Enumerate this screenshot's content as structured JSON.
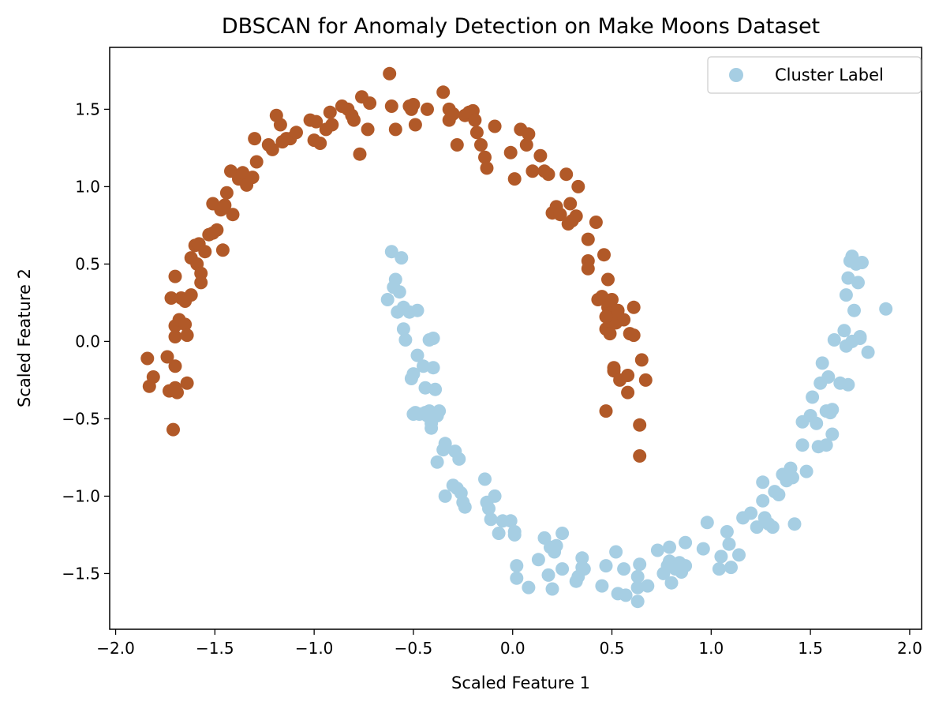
{
  "chart_data": {
    "type": "scatter",
    "title": "DBSCAN for Anomaly Detection on Make Moons Dataset",
    "xlabel": "Scaled Feature 1",
    "ylabel": "Scaled Feature 2",
    "xlim": [
      -2.03,
      2.06
    ],
    "ylim": [
      -1.86,
      1.9
    ],
    "xticks": [
      -2.0,
      -1.5,
      -1.0,
      -0.5,
      0.0,
      0.5,
      1.0,
      1.5,
      2.0
    ],
    "xtick_labels": [
      "−2.0",
      "−1.5",
      "−1.0",
      "−0.5",
      "0.0",
      "0.5",
      "1.0",
      "1.5",
      "2.0"
    ],
    "yticks": [
      -1.5,
      -1.0,
      -0.5,
      0.0,
      0.5,
      1.0,
      1.5
    ],
    "ytick_labels": [
      "−1.5",
      "−1.0",
      "−0.5",
      "0.0",
      "0.5",
      "1.0",
      "1.5"
    ],
    "grid": false,
    "legend": {
      "placement": "top-right",
      "entries": [
        "Cluster Label"
      ]
    },
    "series": [
      {
        "cluster": 1,
        "color": "#b15928",
        "points": [
          [
            -1.84,
            -0.11
          ],
          [
            -1.83,
            -0.29
          ],
          [
            -1.81,
            -0.23
          ],
          [
            -1.74,
            -0.1
          ],
          [
            -1.73,
            -0.32
          ],
          [
            -1.72,
            0.28
          ],
          [
            -1.71,
            -0.57
          ],
          [
            -1.7,
            0.42
          ],
          [
            -1.7,
            0.1
          ],
          [
            -1.7,
            0.03
          ],
          [
            -1.7,
            -0.16
          ],
          [
            -1.7,
            -0.3
          ],
          [
            -1.69,
            -0.33
          ],
          [
            -1.68,
            0.14
          ],
          [
            -1.67,
            0.28
          ],
          [
            -1.65,
            0.11
          ],
          [
            -1.65,
            0.26
          ],
          [
            -1.64,
            0.04
          ],
          [
            -1.64,
            -0.27
          ],
          [
            -1.62,
            0.3
          ],
          [
            -1.62,
            0.54
          ],
          [
            -1.6,
            0.62
          ],
          [
            -1.59,
            0.5
          ],
          [
            -1.58,
            0.63
          ],
          [
            -1.57,
            0.44
          ],
          [
            -1.57,
            0.38
          ],
          [
            -1.55,
            0.58
          ],
          [
            -1.53,
            0.69
          ],
          [
            -1.51,
            0.89
          ],
          [
            -1.51,
            0.7
          ],
          [
            -1.49,
            0.72
          ],
          [
            -1.47,
            0.85
          ],
          [
            -1.46,
            0.59
          ],
          [
            -1.45,
            0.88
          ],
          [
            -1.44,
            0.96
          ],
          [
            -1.42,
            1.1
          ],
          [
            -1.41,
            0.82
          ],
          [
            -1.38,
            1.05
          ],
          [
            -1.36,
            1.09
          ],
          [
            -1.34,
            1.01
          ],
          [
            -1.31,
            1.06
          ],
          [
            -1.3,
            1.31
          ],
          [
            -1.29,
            1.16
          ],
          [
            -1.23,
            1.27
          ],
          [
            -1.21,
            1.24
          ],
          [
            -1.19,
            1.46
          ],
          [
            -1.17,
            1.4
          ],
          [
            -1.16,
            1.29
          ],
          [
            -1.14,
            1.31
          ],
          [
            -1.12,
            1.31
          ],
          [
            -1.09,
            1.35
          ],
          [
            -1.02,
            1.43
          ],
          [
            -1.0,
            1.3
          ],
          [
            -0.99,
            1.42
          ],
          [
            -0.97,
            1.28
          ],
          [
            -0.94,
            1.37
          ],
          [
            -0.92,
            1.48
          ],
          [
            -0.91,
            1.4
          ],
          [
            -0.86,
            1.52
          ],
          [
            -0.83,
            1.5
          ],
          [
            -0.81,
            1.46
          ],
          [
            -0.8,
            1.43
          ],
          [
            -0.77,
            1.21
          ],
          [
            -0.76,
            1.58
          ],
          [
            -0.73,
            1.37
          ],
          [
            -0.72,
            1.54
          ],
          [
            -0.62,
            1.73
          ],
          [
            -0.61,
            1.52
          ],
          [
            -0.59,
            1.37
          ],
          [
            -0.52,
            1.52
          ],
          [
            -0.51,
            1.5
          ],
          [
            -0.5,
            1.53
          ],
          [
            -0.49,
            1.4
          ],
          [
            -0.43,
            1.5
          ],
          [
            -0.35,
            1.61
          ],
          [
            -0.32,
            1.5
          ],
          [
            -0.32,
            1.43
          ],
          [
            -0.3,
            1.47
          ],
          [
            -0.28,
            1.27
          ],
          [
            -0.24,
            1.46
          ],
          [
            -0.22,
            1.48
          ],
          [
            -0.2,
            1.49
          ],
          [
            -0.19,
            1.43
          ],
          [
            -0.18,
            1.35
          ],
          [
            -0.16,
            1.27
          ],
          [
            -0.14,
            1.19
          ],
          [
            -0.13,
            1.12
          ],
          [
            -0.09,
            1.39
          ],
          [
            -0.01,
            1.22
          ],
          [
            0.01,
            1.05
          ],
          [
            0.04,
            1.37
          ],
          [
            0.07,
            1.27
          ],
          [
            0.08,
            1.34
          ],
          [
            0.1,
            1.1
          ],
          [
            0.14,
            1.2
          ],
          [
            0.16,
            1.1
          ],
          [
            0.18,
            1.08
          ],
          [
            0.2,
            0.83
          ],
          [
            0.22,
            0.87
          ],
          [
            0.24,
            0.82
          ],
          [
            0.27,
            1.08
          ],
          [
            0.28,
            0.76
          ],
          [
            0.29,
            0.89
          ],
          [
            0.3,
            0.78
          ],
          [
            0.32,
            0.81
          ],
          [
            0.33,
            1.0
          ],
          [
            0.38,
            0.66
          ],
          [
            0.38,
            0.52
          ],
          [
            0.38,
            0.47
          ],
          [
            0.42,
            0.77
          ],
          [
            0.43,
            0.27
          ],
          [
            0.45,
            0.29
          ],
          [
            0.46,
            0.56
          ],
          [
            0.47,
            0.08
          ],
          [
            0.48,
            0.4
          ],
          [
            0.48,
            0.22
          ],
          [
            0.49,
            0.13
          ],
          [
            0.49,
            0.18
          ],
          [
            0.5,
            0.15
          ],
          [
            0.5,
            0.27
          ],
          [
            0.51,
            -0.19
          ],
          [
            0.51,
            -0.17
          ],
          [
            0.52,
            0.12
          ],
          [
            0.53,
            0.2
          ],
          [
            0.54,
            -0.25
          ],
          [
            0.56,
            0.14
          ],
          [
            0.58,
            -0.33
          ],
          [
            0.58,
            -0.22
          ],
          [
            0.59,
            0.05
          ],
          [
            0.61,
            0.04
          ],
          [
            0.61,
            0.22
          ],
          [
            0.64,
            -0.54
          ],
          [
            0.64,
            -0.74
          ],
          [
            0.65,
            -0.12
          ],
          [
            0.67,
            -0.25
          ],
          [
            0.47,
            -0.45
          ],
          [
            0.47,
            0.16
          ],
          [
            0.49,
            0.05
          ]
        ]
      },
      {
        "cluster": 0,
        "color": "#a6cee3",
        "points": [
          [
            -0.63,
            0.27
          ],
          [
            -0.61,
            0.58
          ],
          [
            -0.6,
            0.35
          ],
          [
            -0.59,
            0.4
          ],
          [
            -0.58,
            0.19
          ],
          [
            -0.57,
            0.32
          ],
          [
            -0.56,
            0.54
          ],
          [
            -0.55,
            0.22
          ],
          [
            -0.55,
            0.08
          ],
          [
            -0.54,
            0.01
          ],
          [
            -0.52,
            0.19
          ],
          [
            -0.51,
            -0.24
          ],
          [
            -0.5,
            -0.21
          ],
          [
            -0.49,
            -0.46
          ],
          [
            -0.48,
            0.2
          ],
          [
            -0.48,
            -0.09
          ],
          [
            -0.47,
            -0.47
          ],
          [
            -0.45,
            -0.16
          ],
          [
            -0.44,
            -0.3
          ],
          [
            -0.44,
            -0.46
          ],
          [
            -0.42,
            0.01
          ],
          [
            -0.42,
            -0.45
          ],
          [
            -0.41,
            -0.53
          ],
          [
            -0.41,
            -0.56
          ],
          [
            -0.4,
            0.02
          ],
          [
            -0.4,
            -0.17
          ],
          [
            -0.39,
            -0.31
          ],
          [
            -0.38,
            -0.48
          ],
          [
            -0.38,
            -0.78
          ],
          [
            -0.37,
            -0.45
          ],
          [
            -0.35,
            -0.7
          ],
          [
            -0.34,
            -0.66
          ],
          [
            -0.34,
            -1.0
          ],
          [
            -0.3,
            -0.93
          ],
          [
            -0.29,
            -0.71
          ],
          [
            -0.28,
            -0.95
          ],
          [
            -0.27,
            -0.76
          ],
          [
            -0.26,
            -0.98
          ],
          [
            -0.25,
            -1.04
          ],
          [
            -0.24,
            -1.07
          ],
          [
            -0.14,
            -0.89
          ],
          [
            -0.13,
            -1.04
          ],
          [
            -0.12,
            -1.08
          ],
          [
            -0.11,
            -1.15
          ],
          [
            -0.09,
            -1.0
          ],
          [
            -0.07,
            -1.24
          ],
          [
            -0.05,
            -1.16
          ],
          [
            -0.01,
            -1.16
          ],
          [
            0.01,
            -1.23
          ],
          [
            0.01,
            -1.25
          ],
          [
            0.02,
            -1.53
          ],
          [
            0.02,
            -1.45
          ],
          [
            0.08,
            -1.59
          ],
          [
            0.13,
            -1.41
          ],
          [
            0.16,
            -1.27
          ],
          [
            0.18,
            -1.51
          ],
          [
            0.19,
            -1.33
          ],
          [
            0.2,
            -1.6
          ],
          [
            0.21,
            -1.36
          ],
          [
            0.22,
            -1.32
          ],
          [
            0.25,
            -1.24
          ],
          [
            0.25,
            -1.47
          ],
          [
            0.32,
            -1.55
          ],
          [
            0.33,
            -1.52
          ],
          [
            0.35,
            -1.4
          ],
          [
            0.35,
            -1.46
          ],
          [
            0.45,
            -1.58
          ],
          [
            0.47,
            -1.45
          ],
          [
            0.52,
            -1.36
          ],
          [
            0.53,
            -1.63
          ],
          [
            0.56,
            -1.47
          ],
          [
            0.57,
            -1.64
          ],
          [
            0.63,
            -1.59
          ],
          [
            0.63,
            -1.52
          ],
          [
            0.63,
            -1.68
          ],
          [
            0.64,
            -1.44
          ],
          [
            0.68,
            -1.58
          ],
          [
            0.73,
            -1.35
          ],
          [
            0.76,
            -1.5
          ],
          [
            0.78,
            -1.45
          ],
          [
            0.79,
            -1.42
          ],
          [
            0.79,
            -1.33
          ],
          [
            0.8,
            -1.56
          ],
          [
            0.82,
            -1.47
          ],
          [
            0.83,
            -1.44
          ],
          [
            0.84,
            -1.43
          ],
          [
            0.85,
            -1.49
          ],
          [
            0.86,
            -1.45
          ],
          [
            0.87,
            -1.3
          ],
          [
            0.87,
            -1.45
          ],
          [
            0.96,
            -1.34
          ],
          [
            0.98,
            -1.17
          ],
          [
            1.04,
            -1.47
          ],
          [
            1.05,
            -1.39
          ],
          [
            1.08,
            -1.23
          ],
          [
            1.09,
            -1.31
          ],
          [
            1.1,
            -1.46
          ],
          [
            1.14,
            -1.38
          ],
          [
            1.16,
            -1.14
          ],
          [
            1.2,
            -1.11
          ],
          [
            1.23,
            -1.2
          ],
          [
            1.26,
            -0.91
          ],
          [
            1.26,
            -1.03
          ],
          [
            1.27,
            -1.14
          ],
          [
            1.29,
            -1.18
          ],
          [
            1.31,
            -1.2
          ],
          [
            1.32,
            -0.97
          ],
          [
            1.34,
            -0.99
          ],
          [
            1.36,
            -0.86
          ],
          [
            1.38,
            -0.9
          ],
          [
            1.4,
            -0.82
          ],
          [
            1.41,
            -0.88
          ],
          [
            1.42,
            -1.18
          ],
          [
            1.46,
            -0.52
          ],
          [
            1.46,
            -0.67
          ],
          [
            1.48,
            -0.84
          ],
          [
            1.5,
            -0.48
          ],
          [
            1.51,
            -0.36
          ],
          [
            1.53,
            -0.53
          ],
          [
            1.54,
            -0.68
          ],
          [
            1.55,
            -0.27
          ],
          [
            1.56,
            -0.14
          ],
          [
            1.58,
            -0.45
          ],
          [
            1.58,
            -0.67
          ],
          [
            1.59,
            -0.23
          ],
          [
            1.6,
            -0.46
          ],
          [
            1.61,
            -0.44
          ],
          [
            1.61,
            -0.6
          ],
          [
            1.62,
            0.01
          ],
          [
            1.65,
            -0.27
          ],
          [
            1.67,
            0.07
          ],
          [
            1.68,
            -0.03
          ],
          [
            1.68,
            0.3
          ],
          [
            1.69,
            -0.28
          ],
          [
            1.69,
            0.41
          ],
          [
            1.7,
            0.52
          ],
          [
            1.71,
            0.55
          ],
          [
            1.71,
            0.0
          ],
          [
            1.72,
            0.2
          ],
          [
            1.73,
            0.5
          ],
          [
            1.74,
            0.38
          ],
          [
            1.75,
            0.02
          ],
          [
            1.75,
            0.03
          ],
          [
            1.76,
            0.51
          ],
          [
            1.79,
            -0.07
          ],
          [
            1.88,
            0.21
          ],
          [
            -0.5,
            -0.47
          ],
          [
            -0.43,
            -0.48
          ],
          [
            0.36,
            -1.47
          ],
          [
            0.63,
            -1.59
          ]
        ]
      }
    ]
  }
}
